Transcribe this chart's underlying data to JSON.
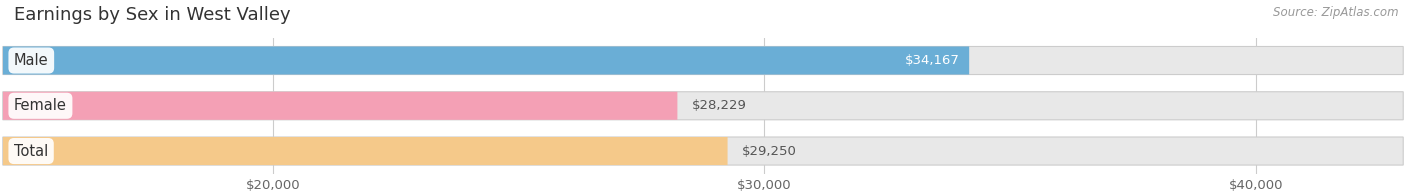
{
  "title": "Earnings by Sex in West Valley",
  "source": "Source: ZipAtlas.com",
  "categories": [
    "Male",
    "Female",
    "Total"
  ],
  "values": [
    34167,
    28229,
    29250
  ],
  "bar_colors": [
    "#6aaed6",
    "#f4a0b5",
    "#f5c98a"
  ],
  "bar_bg_color": "#e8e8e8",
  "value_labels": [
    "$34,167",
    "$28,229",
    "$29,250"
  ],
  "tick_labels": [
    "$20,000",
    "$30,000",
    "$40,000"
  ],
  "tick_values": [
    20000,
    30000,
    40000
  ],
  "xmin": 14500,
  "xmax": 43000,
  "title_fontsize": 13,
  "tick_fontsize": 9.5,
  "label_fontsize": 10.5,
  "value_fontsize": 9.5,
  "background_color": "#ffffff"
}
